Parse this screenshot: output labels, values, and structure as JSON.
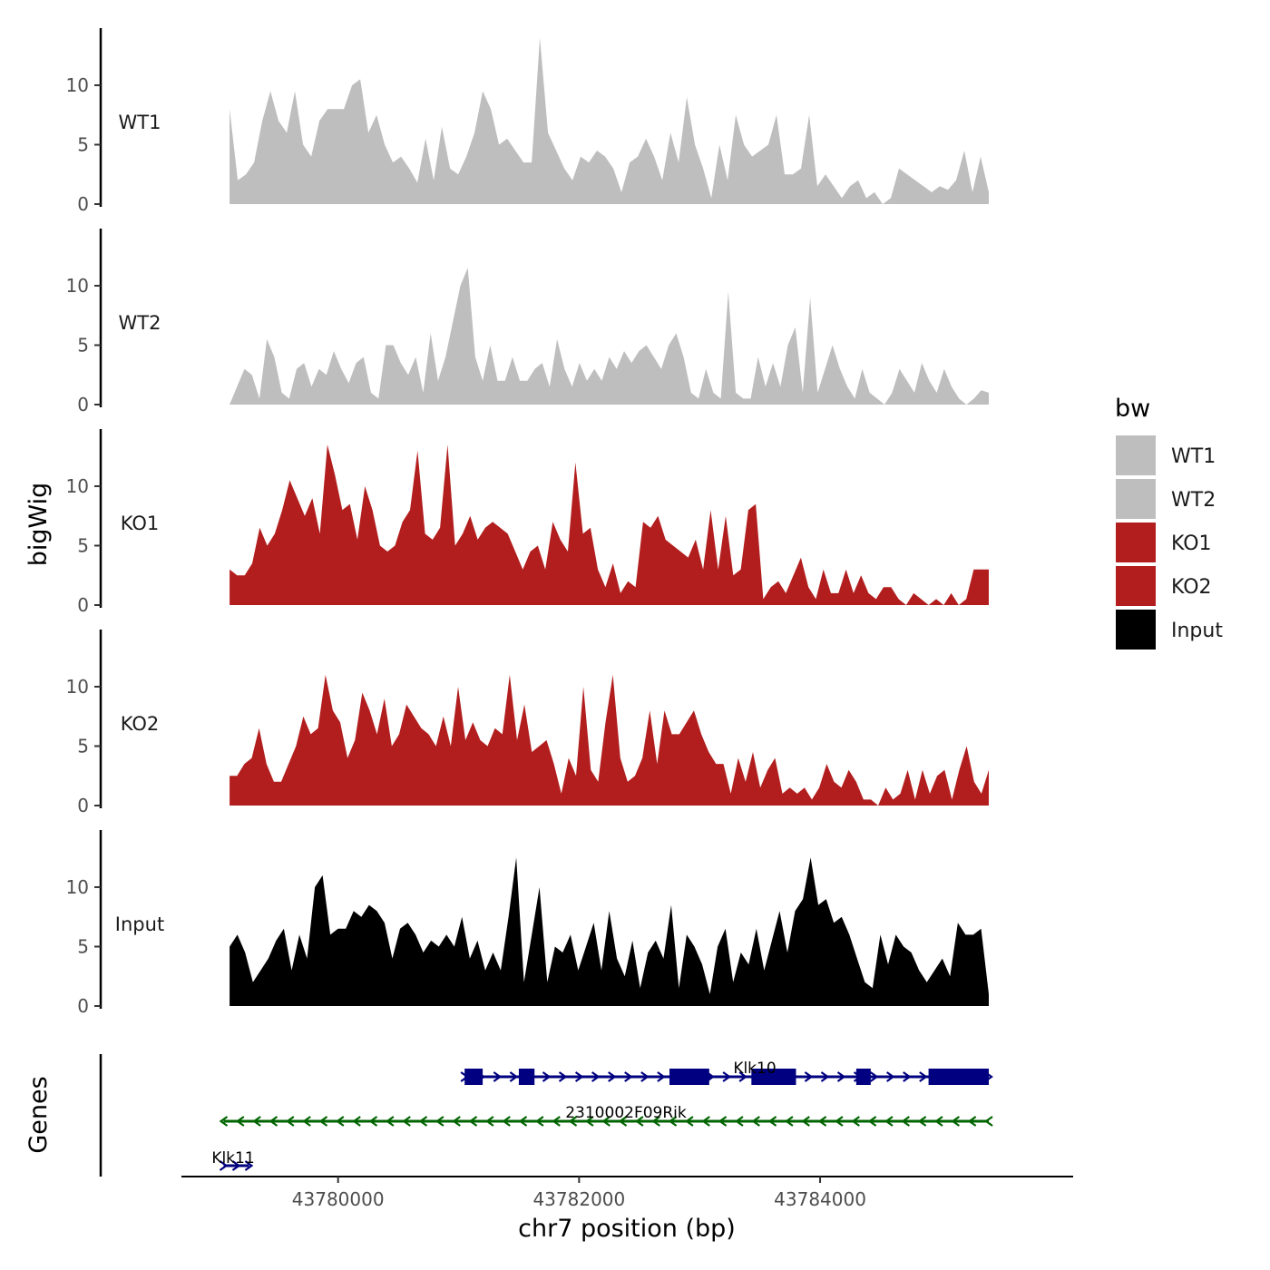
{
  "chart_data": {
    "type": "area",
    "chromosome": "chr7",
    "xlabel": "chr7 position (bp)",
    "ylabel": "bigWig",
    "genes_label": "Genes",
    "xlim": [
      43778700,
      43786100
    ],
    "region": [
      43779100,
      43785400
    ],
    "x_ticks": [
      {
        "value": 43780000,
        "label": "43780000"
      },
      {
        "value": 43782000,
        "label": "43782000"
      },
      {
        "value": 43784000,
        "label": "43784000"
      }
    ],
    "ylim": [
      0,
      14.5
    ],
    "y_ticks": [
      {
        "value": 0,
        "label": "0"
      },
      {
        "value": 5,
        "label": "5"
      },
      {
        "value": 10,
        "label": "10"
      }
    ],
    "legend": {
      "title": "bw",
      "entries": [
        {
          "name": "WT1",
          "color": "#bebebe"
        },
        {
          "name": "WT2",
          "color": "#bebebe"
        },
        {
          "name": "KO1",
          "color": "#b21e1e"
        },
        {
          "name": "KO2",
          "color": "#b21e1e"
        },
        {
          "name": "Input",
          "color": "#000000"
        }
      ]
    },
    "series": [
      {
        "name": "WT1",
        "color": "#bebebe",
        "values": [
          8,
          2,
          2.5,
          3.5,
          7,
          9.5,
          7,
          6,
          9.5,
          5,
          4,
          7,
          8,
          8,
          8,
          10,
          10.5,
          6,
          7.5,
          5,
          3.5,
          4,
          3,
          1.8,
          5.5,
          2,
          6.5,
          3,
          2.5,
          4,
          6,
          9.5,
          8,
          5,
          5.5,
          4.5,
          3.5,
          3.5,
          14,
          6,
          4.5,
          3,
          2,
          4,
          3.5,
          4.5,
          4,
          3,
          1,
          3.5,
          4,
          5.5,
          4,
          2,
          6,
          3.5,
          9,
          5,
          3,
          0.5,
          5,
          2,
          7.5,
          5,
          4,
          4.5,
          5,
          7.5,
          2.5,
          2.5,
          3,
          7.5,
          1.5,
          2.5,
          1.5,
          0.5,
          1.5,
          2,
          0.5,
          1,
          0,
          0.5,
          3,
          2.5,
          2,
          1.5,
          1,
          1.5,
          1.2,
          2,
          4.5,
          1,
          4,
          1
        ]
      },
      {
        "name": "WT2",
        "color": "#bebebe",
        "values": [
          0,
          1.5,
          3,
          2.5,
          0.5,
          5.5,
          4,
          1,
          0.5,
          3,
          3.5,
          1.5,
          3,
          2.5,
          4.5,
          3,
          1.8,
          3.5,
          4,
          1,
          0.5,
          5,
          5,
          3.5,
          2.5,
          4,
          1,
          6,
          2,
          4,
          7,
          10,
          11.5,
          4,
          2,
          5,
          2,
          2,
          4,
          2,
          2,
          3,
          3.5,
          1.5,
          5.5,
          3,
          1.5,
          3.5,
          2,
          3,
          2,
          4,
          3,
          4.5,
          3.5,
          4.5,
          5,
          4,
          3,
          5,
          6,
          4,
          1,
          0.5,
          3,
          1,
          0.5,
          9.5,
          1,
          0.5,
          0.5,
          4,
          1.5,
          3.5,
          1.5,
          5,
          6.5,
          1,
          9,
          1,
          3,
          5,
          3,
          1.5,
          0.5,
          3,
          1,
          0.5,
          0,
          1,
          3,
          2,
          1,
          3.5,
          2,
          1,
          3,
          1.5,
          0.5,
          0,
          0.5,
          1.2,
          1
        ]
      },
      {
        "name": "KO1",
        "color": "#b21e1e",
        "values": [
          3,
          2.5,
          2.5,
          3.5,
          6.5,
          5,
          6,
          8,
          10.5,
          9,
          7.5,
          9,
          6,
          13.5,
          11,
          8,
          8.5,
          5.5,
          10,
          8,
          5,
          4.5,
          5,
          7,
          8,
          13,
          6,
          5.5,
          6.5,
          13.5,
          5,
          6,
          7.5,
          5.5,
          6.5,
          7,
          6.5,
          6,
          4.5,
          3,
          4.5,
          5,
          3,
          7,
          5.5,
          4.5,
          12,
          6,
          6.5,
          3,
          1.5,
          3.5,
          1,
          2,
          1.5,
          7,
          6.5,
          7.5,
          5.5,
          5,
          4.5,
          4,
          5.5,
          3,
          8,
          3,
          7.5,
          2.5,
          3,
          8,
          8.5,
          0.5,
          1.5,
          2,
          1,
          2.5,
          4,
          1.5,
          0.5,
          3,
          1,
          1,
          3,
          1,
          2.5,
          1,
          0.5,
          1.5,
          1.5,
          0.5,
          0,
          1,
          0.5,
          0,
          0.5,
          0,
          1,
          0,
          0.5,
          3,
          3,
          3
        ]
      },
      {
        "name": "KO2",
        "color": "#b21e1e",
        "values": [
          2.5,
          2.5,
          3.5,
          4,
          6.5,
          3.5,
          2,
          2,
          3.5,
          5,
          7.5,
          6,
          6.5,
          11,
          8,
          7,
          4,
          5.5,
          9.5,
          8,
          6,
          9,
          5,
          6,
          8.5,
          7.5,
          6.5,
          6,
          5,
          7.5,
          5,
          10,
          5.5,
          7,
          5.5,
          5,
          6.5,
          6,
          11,
          5.5,
          8.5,
          4.5,
          5,
          5.5,
          3.5,
          1,
          4,
          2.5,
          10,
          3,
          2,
          7,
          11,
          4,
          2,
          2.5,
          4,
          8,
          3.5,
          8,
          6,
          6,
          7,
          8,
          6,
          4.5,
          3.5,
          3.5,
          1,
          4,
          2,
          4.5,
          1.5,
          3,
          4,
          1,
          1.5,
          1,
          1.5,
          0.5,
          1.5,
          3.5,
          2,
          1.5,
          3,
          2,
          0.5,
          0.5,
          0,
          1.5,
          0.5,
          1,
          3,
          0.5,
          3,
          1,
          2.5,
          3,
          0.5,
          3,
          5,
          2,
          1,
          3
        ]
      },
      {
        "name": "Input",
        "color": "#000000",
        "values": [
          5,
          6,
          4.5,
          2,
          3,
          4,
          5.5,
          6.5,
          3,
          6,
          4,
          10,
          11,
          6,
          6.5,
          6.5,
          8,
          7.5,
          8.5,
          8,
          7,
          4,
          6.5,
          7,
          6,
          4.5,
          5.5,
          5,
          6,
          5,
          7.5,
          4,
          5.5,
          3,
          4.5,
          3,
          7.5,
          12.5,
          2,
          6,
          10,
          2,
          5,
          4.5,
          6,
          3,
          5,
          7,
          3,
          8,
          4,
          2.5,
          5.5,
          1.5,
          4.5,
          5.5,
          4,
          8.5,
          1.5,
          6,
          5,
          3.5,
          1,
          5,
          6.5,
          2,
          4.5,
          3.5,
          6.5,
          3,
          5.5,
          8,
          4.5,
          8,
          9,
          12.5,
          8.5,
          9,
          7,
          7.5,
          6,
          4,
          2,
          1.5,
          6,
          3.5,
          6,
          5,
          4.5,
          3,
          2,
          3,
          4,
          2.5,
          7,
          6,
          6,
          6.5,
          1
        ]
      }
    ],
    "genes": [
      {
        "name": "Klk10",
        "strand": "+",
        "color": "#000080",
        "start": 43781050,
        "end": 43785400,
        "exons": [
          [
            43781050,
            43781200
          ],
          [
            43781500,
            43781630
          ],
          [
            43782750,
            43783080
          ],
          [
            43783430,
            43783800
          ],
          [
            43784300,
            43784420
          ],
          [
            43784900,
            43785400
          ]
        ]
      },
      {
        "name": "2310002F09Rik",
        "strand": "-",
        "color": "#006400",
        "start": 43779050,
        "end": 43785400,
        "exons": []
      },
      {
        "name": "Klk11",
        "strand": "+",
        "color": "#000080",
        "start": 43779050,
        "end": 43779260,
        "exons": []
      }
    ]
  }
}
